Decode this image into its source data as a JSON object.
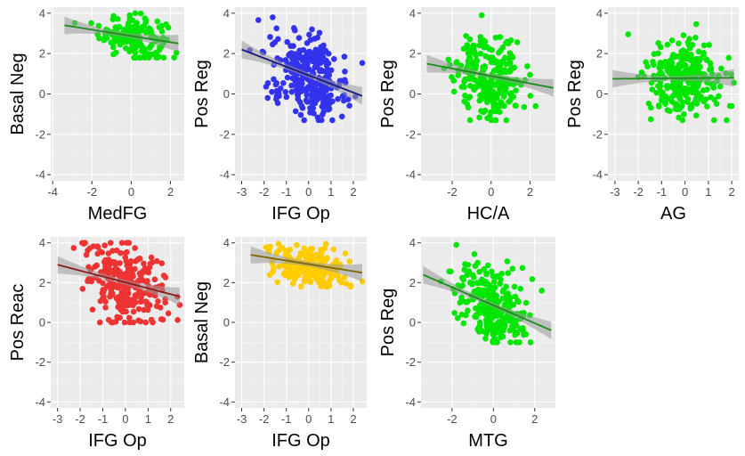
{
  "chart_data": [
    {
      "id": "p1",
      "type": "scatter",
      "xlabel": "MedFG",
      "ylabel": "Basal Neg",
      "color": "#00e600",
      "line_color": "#1a8c1a",
      "xlim": [
        -4.1,
        2.7
      ],
      "ylim": [
        -4.3,
        4.3
      ],
      "xticks": [
        -4,
        -2,
        0,
        2
      ],
      "yticks": [
        -4,
        -2,
        0,
        2,
        4
      ],
      "fit": {
        "x": [
          -3.4,
          2.4
        ],
        "y": [
          3.4,
          2.5
        ]
      },
      "cloud": {
        "cx": 0.1,
        "sx": 0.85,
        "cy": 2.85,
        "sy": 0.55,
        "ymin": 1.8,
        "ymax": 4.0,
        "n": 170,
        "xmin": -3.4,
        "xmax": 2.4
      }
    },
    {
      "id": "p2",
      "type": "scatter",
      "xlabel": "IFG Op",
      "ylabel": "Pos Reg",
      "color": "#3333ee",
      "line_color": "#1a1a80",
      "xlim": [
        -3.3,
        2.6
      ],
      "ylim": [
        -4.3,
        4.3
      ],
      "xticks": [
        -3,
        -2,
        -1,
        0,
        1,
        2
      ],
      "yticks": [
        -4,
        -2,
        0,
        2,
        4
      ],
      "fit": {
        "x": [
          -3.0,
          2.4
        ],
        "y": [
          2.2,
          -0.1
        ]
      },
      "cloud": {
        "cx": 0.0,
        "sx": 0.85,
        "cy": 0.9,
        "sy": 1.0,
        "ymin": -1.3,
        "ymax": 3.8,
        "n": 290,
        "xmin": -3.0,
        "xmax": 2.4,
        "slope": -0.43
      }
    },
    {
      "id": "p3",
      "type": "scatter",
      "xlabel": "HC/A",
      "ylabel": "Pos Reg",
      "color": "#00e600",
      "line_color": "#1a8c1a",
      "xlim": [
        -3.6,
        3.3
      ],
      "ylim": [
        -4.3,
        4.3
      ],
      "xticks": [
        -2,
        0,
        2
      ],
      "yticks": [
        -4,
        -2,
        0,
        2,
        4
      ],
      "fit": {
        "x": [
          -3.3,
          3.2
        ],
        "y": [
          1.5,
          0.3
        ]
      },
      "cloud": {
        "cx": 0.0,
        "sx": 0.9,
        "cy": 0.8,
        "sy": 1.0,
        "ymin": -1.3,
        "ymax": 3.9,
        "n": 260,
        "xmin": -3.3,
        "xmax": 3.2,
        "slope": -0.18
      }
    },
    {
      "id": "p4",
      "type": "scatter",
      "xlabel": "AG",
      "ylabel": "Pos Reg",
      "color": "#00e600",
      "line_color": "#1a8c1a",
      "xlim": [
        -3.3,
        2.3
      ],
      "ylim": [
        -4.3,
        4.3
      ],
      "xticks": [
        -3,
        -2,
        -1,
        0,
        1,
        2
      ],
      "yticks": [
        -4,
        -2,
        0,
        2,
        4
      ],
      "fit": {
        "x": [
          -3.1,
          2.1
        ],
        "y": [
          0.75,
          0.8
        ]
      },
      "cloud": {
        "cx": 0.0,
        "sx": 0.85,
        "cy": 0.8,
        "sy": 1.0,
        "ymin": -1.3,
        "ymax": 3.9,
        "n": 260,
        "xmin": -3.1,
        "xmax": 2.1,
        "slope": 0.0
      }
    },
    {
      "id": "p5",
      "type": "scatter",
      "xlabel": "IFG Op",
      "ylabel": "Pos Reac",
      "color": "#ee3333",
      "line_color": "#8c1a1a",
      "xlim": [
        -3.3,
        2.6
      ],
      "ylim": [
        -4.3,
        4.3
      ],
      "xticks": [
        -3,
        -2,
        -1,
        0,
        1,
        2
      ],
      "yticks": [
        -4,
        -2,
        0,
        2,
        4
      ],
      "fit": {
        "x": [
          -3.0,
          2.4
        ],
        "y": [
          2.9,
          1.3
        ]
      },
      "cloud": {
        "cx": 0.0,
        "sx": 0.85,
        "cy": 2.0,
        "sy": 1.0,
        "ymin": 0.0,
        "ymax": 4.0,
        "n": 260,
        "xmin": -3.0,
        "xmax": 2.4,
        "slope": -0.3
      }
    },
    {
      "id": "p6",
      "type": "scatter",
      "xlabel": "IFG Op",
      "ylabel": "Basal Neg",
      "color": "#ffcc00",
      "line_color": "#806600",
      "xlim": [
        -3.3,
        2.6
      ],
      "ylim": [
        -4.3,
        4.3
      ],
      "xticks": [
        -3,
        -2,
        -1,
        0,
        1,
        2
      ],
      "yticks": [
        -4,
        -2,
        0,
        2,
        4
      ],
      "fit": {
        "x": [
          -2.6,
          2.4
        ],
        "y": [
          3.4,
          2.5
        ]
      },
      "cloud": {
        "cx": 0.0,
        "sx": 0.8,
        "cy": 2.8,
        "sy": 0.55,
        "ymin": 1.8,
        "ymax": 4.0,
        "n": 200,
        "xmin": -2.6,
        "xmax": 2.4,
        "slope": -0.18
      }
    },
    {
      "id": "p7",
      "type": "scatter",
      "xlabel": "MTG",
      "ylabel": "Pos Reg",
      "color": "#00e600",
      "line_color": "#1a8c1a",
      "xlim": [
        -3.5,
        3.0
      ],
      "ylim": [
        -4.3,
        4.3
      ],
      "xticks": [
        -2,
        0,
        2
      ],
      "yticks": [
        -4,
        -2,
        0,
        2,
        4
      ],
      "fit": {
        "x": [
          -3.4,
          2.8
        ],
        "y": [
          2.4,
          -0.4
        ]
      },
      "cloud": {
        "cx": 0.0,
        "sx": 0.9,
        "cy": 0.8,
        "sy": 1.0,
        "ymin": -1.0,
        "ymax": 3.9,
        "n": 260,
        "xmin": -3.4,
        "xmax": 2.8,
        "slope": -0.45
      }
    }
  ]
}
